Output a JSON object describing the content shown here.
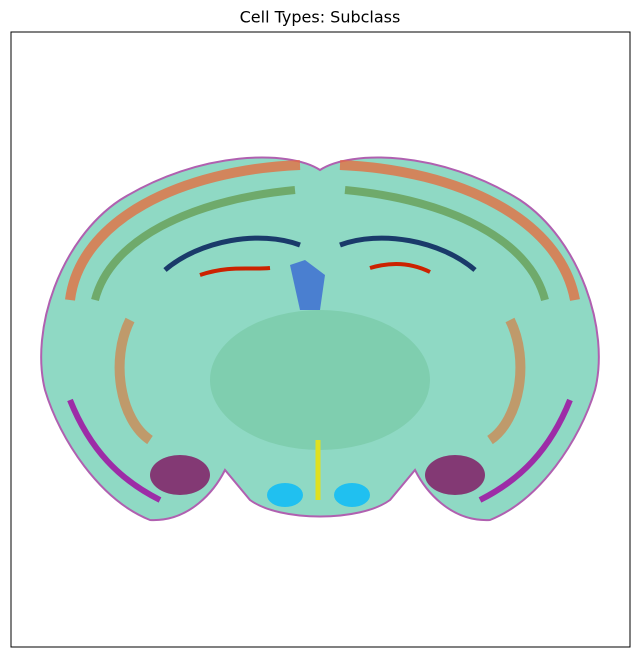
{
  "chart_data": {
    "type": "scatter",
    "title": "Cell Types: Subclass"
  }
}
